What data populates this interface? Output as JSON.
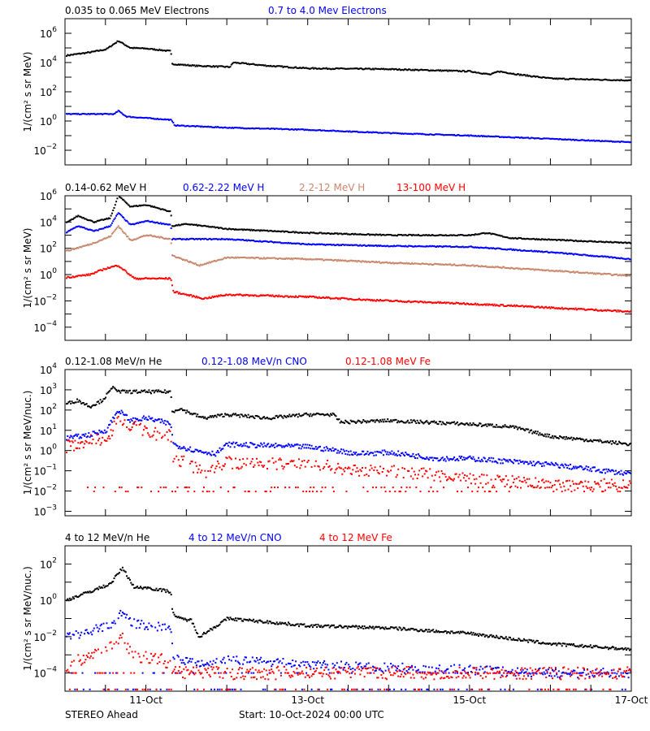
{
  "footer": {
    "left": "STEREO Ahead",
    "center": "Start: 10-Oct-2024 00:00 UTC"
  },
  "colors": {
    "black": "#000000",
    "blue": "#0000ff",
    "brown": "#c8866a",
    "red": "#ff0000"
  },
  "chart_data": [
    {
      "type": "scatter",
      "ylabel": "1/(cm² s sr MeV)",
      "yscale": "log",
      "ylim": [
        0.001,
        10000000.0
      ],
      "ytick_exponents": [
        -2,
        0,
        2,
        4,
        6
      ],
      "xlim_days": [
        0,
        7
      ],
      "series": [
        {
          "name": "0.035 to 0.065 MeV Electrons",
          "color": "#000000",
          "points": [
            [
              0,
              30000.0
            ],
            [
              0.3,
              50000.0
            ],
            [
              0.5,
              80000.0
            ],
            [
              0.65,
              300000.0
            ],
            [
              0.8,
              100000.0
            ],
            [
              1.0,
              90000.0
            ],
            [
              1.3,
              60000.0
            ],
            [
              1.31,
              8000.0
            ],
            [
              1.6,
              6000.0
            ],
            [
              2.03,
              5000.0
            ],
            [
              2.07,
              10000.0
            ],
            [
              2.5,
              6000.0
            ],
            [
              3,
              4000.0
            ],
            [
              4,
              3500.0
            ],
            [
              5,
              2500.0
            ],
            [
              5.25,
              1500.0
            ],
            [
              5.35,
              2500.0
            ],
            [
              5.6,
              1500.0
            ],
            [
              6,
              800.0
            ],
            [
              7,
              600.0
            ]
          ]
        },
        {
          "name": "0.7 to 4.0 Mev Electrons",
          "color": "#0000ff",
          "points": [
            [
              0,
              3
            ],
            [
              0.6,
              3
            ],
            [
              0.65,
              5
            ],
            [
              0.75,
              2
            ],
            [
              1.3,
              1.2
            ],
            [
              1.35,
              0.5
            ],
            [
              2,
              0.35
            ],
            [
              3,
              0.25
            ],
            [
              4,
              0.15
            ],
            [
              5,
              0.1
            ],
            [
              6,
              0.06
            ],
            [
              7,
              0.035
            ]
          ]
        }
      ]
    },
    {
      "type": "scatter",
      "ylabel": "1/(cm² s sr MeV)",
      "yscale": "log",
      "ylim": [
        1e-05,
        1000000.0
      ],
      "ytick_exponents": [
        -4,
        -2,
        0,
        2,
        4,
        6
      ],
      "xlim_days": [
        0,
        7
      ],
      "series": [
        {
          "name": "0.14-0.62 MeV H",
          "color": "#000000",
          "points": [
            [
              0,
              8000.0
            ],
            [
              0.15,
              30000.0
            ],
            [
              0.35,
              10000.0
            ],
            [
              0.55,
              20000.0
            ],
            [
              0.65,
              1000000.0
            ],
            [
              0.8,
              150000.0
            ],
            [
              1,
              200000.0
            ],
            [
              1.3,
              60000.0
            ],
            [
              1.31,
              5000.0
            ],
            [
              1.5,
              7000.0
            ],
            [
              2,
              3000.0
            ],
            [
              3,
              1500.0
            ],
            [
              4,
              1000.0
            ],
            [
              5,
              1000.0
            ],
            [
              5.2,
              1500.0
            ],
            [
              5.5,
              600.0
            ],
            [
              7,
              250.0
            ]
          ]
        },
        {
          "name": "0.62-2.22 MeV H",
          "color": "#0000ff",
          "points": [
            [
              0,
              1500.0
            ],
            [
              0.15,
              5000.0
            ],
            [
              0.35,
              2000.0
            ],
            [
              0.55,
              5000.0
            ],
            [
              0.65,
              50000.0
            ],
            [
              0.8,
              6000.0
            ],
            [
              1,
              12000.0
            ],
            [
              1.3,
              6000.0
            ],
            [
              1.31,
              500.0
            ],
            [
              2,
              500.0
            ],
            [
              3,
              200.0
            ],
            [
              4,
              150.0
            ],
            [
              5,
              130.0
            ],
            [
              6,
              50
            ],
            [
              7,
              15
            ]
          ]
        },
        {
          "name": "2.2-12 MeV H",
          "color": "#c8866a",
          "points": [
            [
              0,
              60
            ],
            [
              0.3,
              200
            ],
            [
              0.55,
              800
            ],
            [
              0.65,
              5000.0
            ],
            [
              0.8,
              400
            ],
            [
              1,
              1000.0
            ],
            [
              1.3,
              500
            ],
            [
              1.31,
              30
            ],
            [
              1.65,
              5
            ],
            [
              2,
              20
            ],
            [
              3,
              15
            ],
            [
              4,
              8
            ],
            [
              5,
              5
            ],
            [
              6,
              2
            ],
            [
              7,
              0.8
            ]
          ]
        },
        {
          "name": "13-100 MeV H",
          "color": "#ff0000",
          "points": [
            [
              0,
              0.6
            ],
            [
              0.3,
              1
            ],
            [
              0.5,
              3
            ],
            [
              0.65,
              5
            ],
            [
              0.85,
              0.5
            ],
            [
              1.3,
              0.5
            ],
            [
              1.33,
              0.05
            ],
            [
              1.7,
              0.015
            ],
            [
              2,
              0.03
            ],
            [
              3,
              0.02
            ],
            [
              4,
              0.01
            ],
            [
              5,
              0.006
            ],
            [
              6,
              0.003
            ],
            [
              7,
              0.0015
            ]
          ]
        }
      ]
    },
    {
      "type": "scatter",
      "ylabel": "1/(cm² s sr MeV/nuc.)",
      "yscale": "log",
      "ylim": [
        0.0006,
        10000.0
      ],
      "ytick_exponents": [
        -3,
        -2,
        -1,
        0,
        1,
        2,
        3,
        4
      ],
      "xlim_days": [
        0,
        7
      ],
      "series": [
        {
          "name": "0.12-1.08 MeV/n He",
          "color": "#000000",
          "points": [
            [
              0,
              200
            ],
            [
              0.15,
              300
            ],
            [
              0.3,
              150
            ],
            [
              0.45,
              300
            ],
            [
              0.6,
              1500
            ],
            [
              0.65,
              800
            ],
            [
              1.3,
              800
            ],
            [
              1.31,
              80
            ],
            [
              1.4,
              120
            ],
            [
              1.7,
              40
            ],
            [
              2,
              60
            ],
            [
              2.5,
              40
            ],
            [
              3,
              60
            ],
            [
              3.3,
              60
            ],
            [
              3.4,
              25
            ],
            [
              4,
              30
            ],
            [
              5,
              20
            ],
            [
              5.5,
              15
            ],
            [
              6,
              5
            ],
            [
              7,
              2
            ]
          ]
        },
        {
          "name": "0.12-1.08 MeV/n CNO",
          "color": "#0000ff",
          "points": [
            [
              0,
              4
            ],
            [
              0.3,
              6
            ],
            [
              0.5,
              10
            ],
            [
              0.65,
              100
            ],
            [
              0.8,
              30
            ],
            [
              1,
              40
            ],
            [
              1.3,
              20
            ],
            [
              1.33,
              2
            ],
            [
              1.6,
              1
            ],
            [
              1.85,
              0.7
            ],
            [
              2,
              2
            ],
            [
              3,
              1.5
            ],
            [
              3.35,
              1
            ],
            [
              3.6,
              0.7
            ],
            [
              4,
              0.8
            ],
            [
              4.6,
              0.4
            ],
            [
              5,
              0.4
            ],
            [
              6,
              0.2
            ],
            [
              7,
              0.07
            ]
          ]
        },
        {
          "name": "0.12-1.08 MeV Fe",
          "color": "#ff0000",
          "points": [
            [
              0,
              1.5
            ],
            [
              0.2,
              2.5
            ],
            [
              0.5,
              4
            ],
            [
              0.65,
              30
            ],
            [
              1,
              8
            ],
            [
              1.3,
              5
            ],
            [
              1.33,
              0.5
            ],
            [
              1.7,
              0.08
            ],
            [
              2,
              0.25
            ],
            [
              3,
              0.2
            ],
            [
              3.35,
              0.15
            ],
            [
              3.6,
              0.1
            ],
            [
              4,
              0.1
            ],
            [
              5,
              0.04
            ],
            [
              6,
              0.02
            ],
            [
              7,
              0.02
            ]
          ]
        }
      ]
    },
    {
      "type": "scatter",
      "ylabel": "1/(cm² s sr MeV/nuc.)",
      "yscale": "log",
      "ylim": [
        1e-05,
        1000.0
      ],
      "ytick_exponents": [
        -4,
        -2,
        0,
        2
      ],
      "xlim_days": [
        0,
        7
      ],
      "xticks": [
        "11-Oct",
        "13-Oct",
        "15-Oct",
        "17-Oct"
      ],
      "series": [
        {
          "name": "4 to 12 MeV/n He",
          "color": "#000000",
          "points": [
            [
              0,
              1
            ],
            [
              0.3,
              3
            ],
            [
              0.55,
              8
            ],
            [
              0.7,
              60
            ],
            [
              0.85,
              5
            ],
            [
              1,
              5
            ],
            [
              1.3,
              3
            ],
            [
              1.32,
              0.2
            ],
            [
              1.4,
              0.1
            ],
            [
              1.55,
              0.08
            ],
            [
              1.65,
              0.01
            ],
            [
              1.9,
              0.05
            ],
            [
              2,
              0.1
            ],
            [
              3,
              0.04
            ],
            [
              4,
              0.03
            ],
            [
              5,
              0.015
            ],
            [
              6,
              0.004
            ],
            [
              7,
              0.002
            ]
          ]
        },
        {
          "name": "4 to 12 MeV/n CNO",
          "color": "#0000ff",
          "points": [
            [
              0,
              0.01
            ],
            [
              0.3,
              0.02
            ],
            [
              0.55,
              0.05
            ],
            [
              0.7,
              0.2
            ],
            [
              0.85,
              0.05
            ],
            [
              1.3,
              0.03
            ],
            [
              1.33,
              0.001
            ],
            [
              1.6,
              0.0003
            ],
            [
              2,
              0.0006
            ],
            [
              3,
              0.0003
            ],
            [
              4,
              0.0002
            ],
            [
              5,
              0.00015
            ],
            [
              6,
              0.0001
            ],
            [
              7,
              0.0001
            ]
          ]
        },
        {
          "name": "4 to 12 MeV Fe",
          "color": "#ff0000",
          "points": [
            [
              0,
              0.0002
            ],
            [
              0.3,
              0.001
            ],
            [
              0.7,
              0.008
            ],
            [
              0.85,
              0.001
            ],
            [
              1.3,
              0.0004
            ],
            [
              1.33,
              0.0001
            ],
            [
              7,
              0.0001
            ]
          ]
        }
      ]
    }
  ]
}
